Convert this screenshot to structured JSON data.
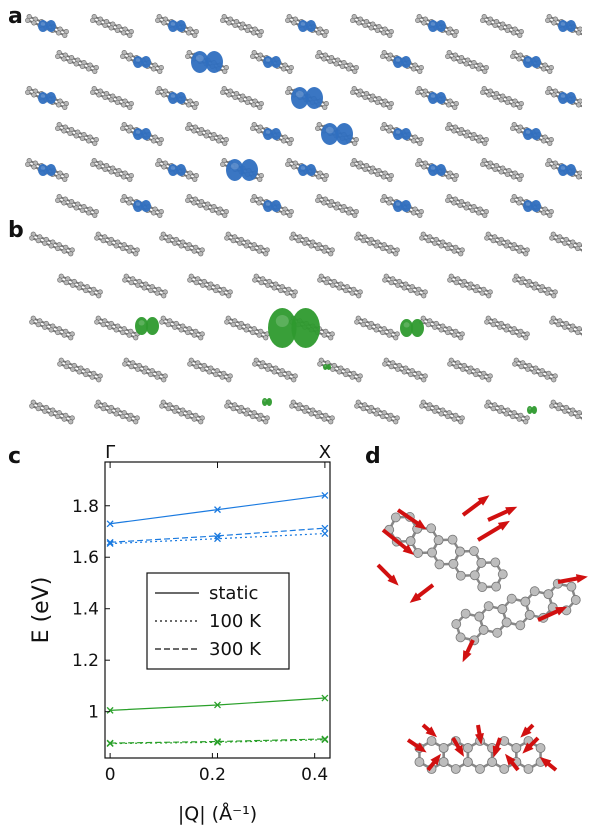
{
  "panels": {
    "a": {
      "letter": "a"
    },
    "b": {
      "letter": "b"
    },
    "c": {
      "letter": "c"
    },
    "d": {
      "letter": "d"
    }
  },
  "colors": {
    "blue": "#1a7ae0",
    "green": "#2aa02a",
    "iso_blue": "#2f6fc0",
    "iso_green": "#2e9a2e",
    "molecule": "#9a9a9a",
    "arrow_red": "#d11010"
  },
  "chart_data": {
    "type": "line",
    "title": "",
    "xlabel": "|Q| (Å⁻¹)",
    "ylabel": "E (eV)",
    "xlim": [
      -0.01,
      0.43
    ],
    "ylim": [
      0.82,
      1.97
    ],
    "x_ticks": [
      "0",
      "0.2",
      "0.4"
    ],
    "y_ticks": [
      "1",
      "1.2",
      "1.4",
      "1.6",
      "1.8"
    ],
    "top_ticks": [
      "Γ",
      "X"
    ],
    "legend": {
      "placement": "center",
      "entries": [
        {
          "label": "static",
          "style": "solid"
        },
        {
          "label": "100 K",
          "style": "dotted"
        },
        {
          "label": "300 K",
          "style": "dashed"
        }
      ]
    },
    "x": [
      0,
      0.21,
      0.42
    ],
    "series": [
      {
        "color": "blue",
        "style": "solid",
        "values": [
          1.73,
          1.785,
          1.84
        ]
      },
      {
        "color": "blue",
        "style": "dotted",
        "values": [
          1.653,
          1.672,
          1.692
        ]
      },
      {
        "color": "blue",
        "style": "dashed",
        "values": [
          1.658,
          1.683,
          1.713
        ]
      },
      {
        "color": "green",
        "style": "solid",
        "values": [
          1.005,
          1.026,
          1.053
        ]
      },
      {
        "color": "green",
        "style": "dotted",
        "values": [
          0.876,
          0.881,
          0.891
        ]
      },
      {
        "color": "green",
        "style": "dashed",
        "values": [
          0.878,
          0.884,
          0.894
        ]
      }
    ]
  }
}
